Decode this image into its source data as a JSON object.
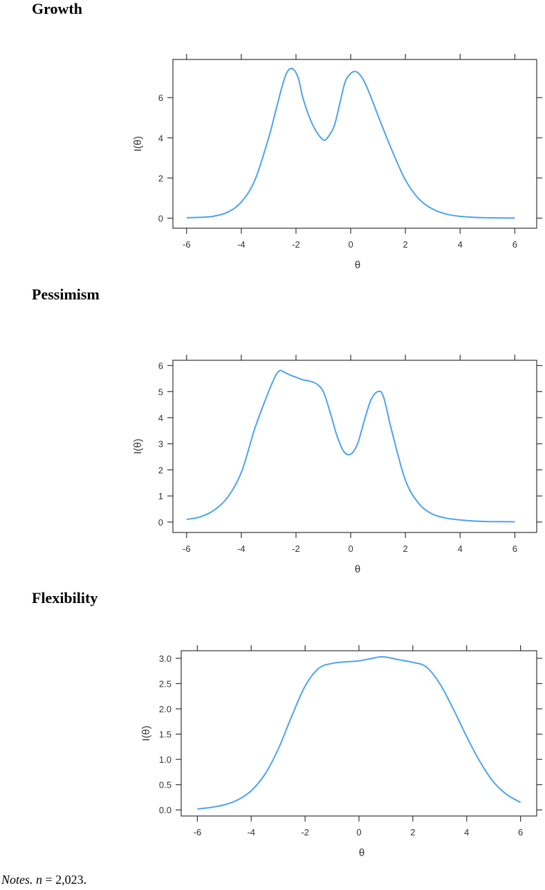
{
  "chart_data": [
    {
      "type": "line",
      "title": "Growth",
      "xlabel": "θ",
      "ylabel": "I(θ)",
      "xlim": [
        -6.5,
        6.8
      ],
      "ylim": [
        -0.5,
        7.9
      ],
      "xticks": [
        -6,
        -4,
        -2,
        0,
        2,
        4,
        6
      ],
      "yticks": [
        0,
        2,
        4,
        6
      ],
      "ytick_labels": [
        "0",
        "2",
        "4",
        "6"
      ],
      "color": "#4aa3f0",
      "series": [
        {
          "x": [
            -6,
            -5.5,
            -5,
            -4.5,
            -4,
            -3.5,
            -3,
            -2.75,
            -2.5,
            -2.35,
            -2.2,
            -2.05,
            -1.9,
            -1.75,
            -1.5,
            -1.25,
            -1,
            -0.85,
            -0.6,
            -0.4,
            -0.2,
            0,
            0.15,
            0.3,
            0.5,
            0.75,
            1,
            1.5,
            2,
            2.5,
            3,
            3.5,
            4,
            4.5,
            5,
            5.5,
            6
          ],
          "y": [
            0.02,
            0.04,
            0.1,
            0.3,
            0.8,
            1.9,
            4.0,
            5.3,
            6.6,
            7.2,
            7.45,
            7.35,
            6.9,
            6.0,
            5.0,
            4.3,
            3.9,
            4.0,
            4.6,
            5.7,
            6.8,
            7.2,
            7.3,
            7.2,
            6.8,
            6.0,
            5.1,
            3.4,
            1.9,
            0.95,
            0.45,
            0.2,
            0.09,
            0.04,
            0.02,
            0.01,
            0.01
          ]
        }
      ]
    },
    {
      "type": "line",
      "title": "Pessimism",
      "xlabel": "θ",
      "ylabel": "I(θ)",
      "xlim": [
        -6.5,
        6.8
      ],
      "ylim": [
        -0.4,
        6.2
      ],
      "xticks": [
        -6,
        -4,
        -2,
        0,
        2,
        4,
        6
      ],
      "yticks": [
        0,
        1,
        2,
        3,
        4,
        5,
        6
      ],
      "ytick_labels": [
        "0",
        "1",
        "2",
        "3",
        "4",
        "5",
        "6"
      ],
      "color": "#4aa3f0",
      "series": [
        {
          "x": [
            -6,
            -5.5,
            -5,
            -4.5,
            -4,
            -3.5,
            -3,
            -2.75,
            -2.6,
            -2.5,
            -2.25,
            -2,
            -1.75,
            -1.5,
            -1.25,
            -1,
            -0.75,
            -0.5,
            -0.25,
            0,
            0.25,
            0.5,
            0.75,
            1,
            1.2,
            1.5,
            2,
            2.5,
            3,
            3.5,
            4,
            4.5,
            5,
            6
          ],
          "y": [
            0.1,
            0.2,
            0.45,
            0.95,
            1.9,
            3.6,
            5.0,
            5.6,
            5.8,
            5.78,
            5.65,
            5.55,
            5.45,
            5.4,
            5.3,
            5.0,
            4.2,
            3.3,
            2.7,
            2.6,
            3.0,
            3.9,
            4.7,
            5.0,
            4.8,
            3.5,
            1.6,
            0.7,
            0.3,
            0.15,
            0.08,
            0.04,
            0.02,
            0.01
          ]
        }
      ]
    },
    {
      "type": "line",
      "title": "Flexibility",
      "xlabel": "θ",
      "ylabel": "I(θ)",
      "xlim": [
        -6.6,
        6.6
      ],
      "ylim": [
        -0.12,
        3.15
      ],
      "xticks": [
        -6,
        -4,
        -2,
        0,
        2,
        4,
        6
      ],
      "yticks": [
        0,
        0.5,
        1,
        1.5,
        2,
        2.5,
        3
      ],
      "ytick_labels": [
        "0.0",
        "0.5",
        "1.0",
        "1.5",
        "2.0",
        "2.5",
        "3.0"
      ],
      "color": "#4aa3f0",
      "series": [
        {
          "x": [
            -6,
            -5.5,
            -5,
            -4.5,
            -4,
            -3.5,
            -3,
            -2.5,
            -2,
            -1.5,
            -1,
            -0.5,
            0,
            0.5,
            0.9,
            1.5,
            2,
            2.5,
            3,
            3.5,
            4,
            4.5,
            5,
            5.5,
            6
          ],
          "y": [
            0.02,
            0.05,
            0.1,
            0.2,
            0.38,
            0.7,
            1.2,
            1.85,
            2.45,
            2.8,
            2.9,
            2.93,
            2.95,
            3.0,
            3.03,
            2.97,
            2.92,
            2.83,
            2.5,
            2.0,
            1.45,
            0.95,
            0.55,
            0.3,
            0.15
          ]
        }
      ]
    }
  ],
  "notes": {
    "label": "Notes.",
    "n_symbol": "n",
    "rest": " = 2,023."
  }
}
